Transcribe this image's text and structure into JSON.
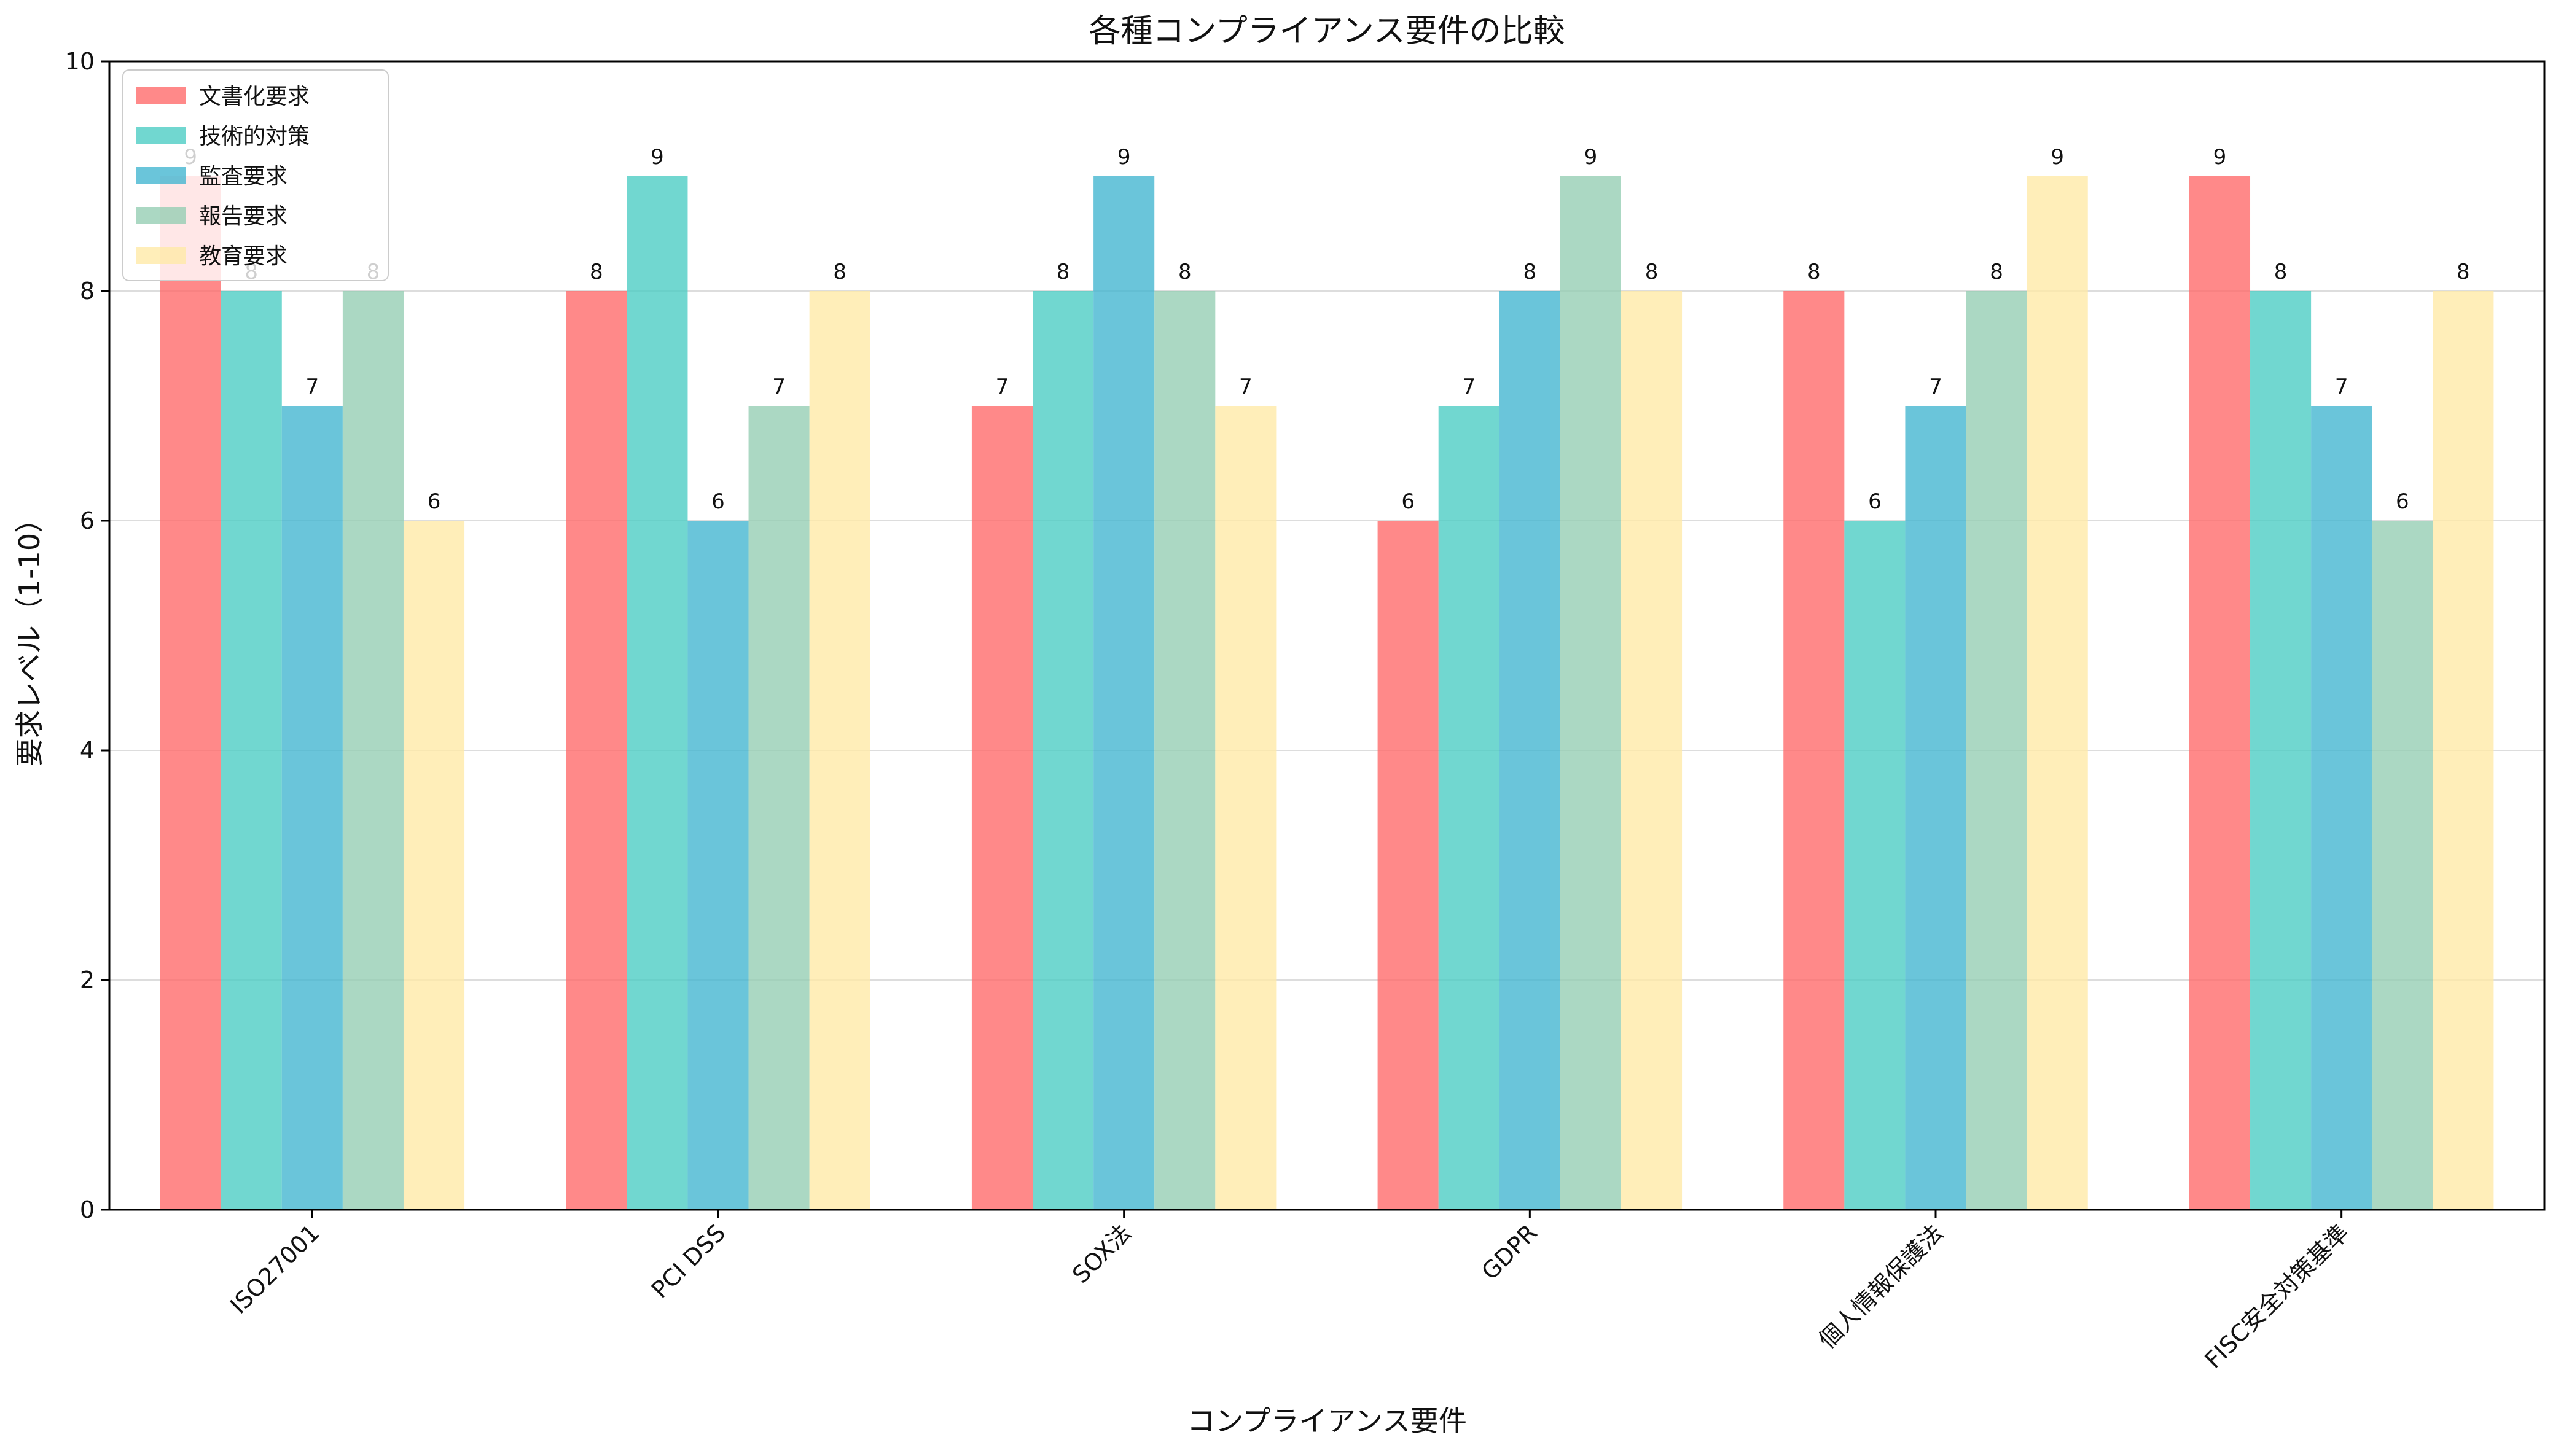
{
  "chart_data": {
    "type": "bar",
    "title": "各種コンプライアンス要件の比較",
    "xlabel": "コンプライアンス要件",
    "ylabel": "要求レベル（1-10）",
    "ylim": [
      0,
      10
    ],
    "yticks": [
      0,
      2,
      4,
      6,
      8,
      10
    ],
    "grid": "horizontal",
    "legend_position": "top-left",
    "categories": [
      "ISO27001",
      "PCI DSS",
      "SOX法",
      "GDPR",
      "個人情報保護法",
      "FISC安全対策基準"
    ],
    "series": [
      {
        "name": "文書化要求",
        "color": "#ff6b6b",
        "values": [
          9,
          8,
          7,
          6,
          8,
          9
        ]
      },
      {
        "name": "技術的対策",
        "color": "#4ecdc4",
        "values": [
          8,
          9,
          8,
          7,
          6,
          8
        ]
      },
      {
        "name": "監査要求",
        "color": "#45b7d1",
        "values": [
          7,
          6,
          9,
          8,
          7,
          7
        ]
      },
      {
        "name": "報告要求",
        "color": "#96ceb4",
        "values": [
          8,
          7,
          8,
          9,
          8,
          6
        ]
      },
      {
        "name": "教育要求",
        "color": "#ffeaa7",
        "values": [
          6,
          8,
          7,
          8,
          9,
          8
        ]
      }
    ]
  }
}
